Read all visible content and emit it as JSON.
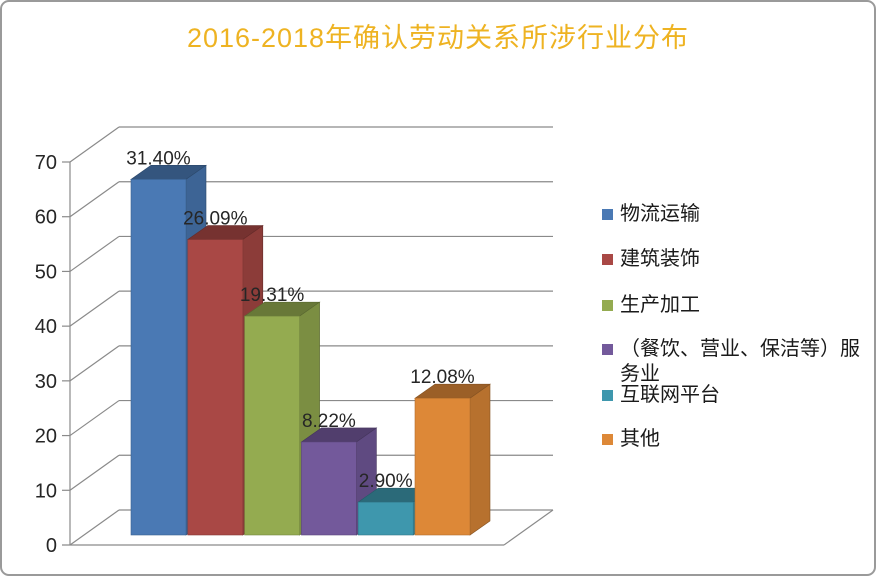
{
  "chart_data": {
    "type": "bar",
    "style": "3d-clustered-column",
    "title": "2016-2018年确认劳动关系所涉行业分布",
    "title_color": "#EEB322",
    "categories": [
      "物流运输",
      "建筑装饰",
      "生产加工",
      "（餐饮、营业、保洁等）服务业",
      "互联网平台",
      "其他"
    ],
    "values": [
      65,
      54,
      40,
      17,
      6,
      25
    ],
    "data_labels": [
      "31.40%",
      "26.09%",
      "19.31%",
      "8.22%",
      "2.90%",
      "12.08%"
    ],
    "series_colors": [
      "#4A79B4",
      "#A94845",
      "#94AB50",
      "#73599B",
      "#3E97AD",
      "#DD8837"
    ],
    "ylim": [
      0,
      70
    ],
    "y_ticks": [
      0,
      10,
      20,
      30,
      40,
      50,
      60,
      70
    ],
    "xlabel": "",
    "ylabel": "",
    "grid": true,
    "legend_position": "right",
    "legend_entries": [
      "物流运输",
      "建筑装饰",
      "生产加工",
      "（餐饮、营业、保洁等）服务业",
      "互联网平台",
      "其他"
    ],
    "gridline_color": "#8A8A8A",
    "axis_line_color": "#8A8A8A",
    "label_color": "#262626",
    "axis_label_color": "#262626"
  },
  "window": {
    "background": "#FFFFFF",
    "border_color": "#9A9A9A"
  }
}
